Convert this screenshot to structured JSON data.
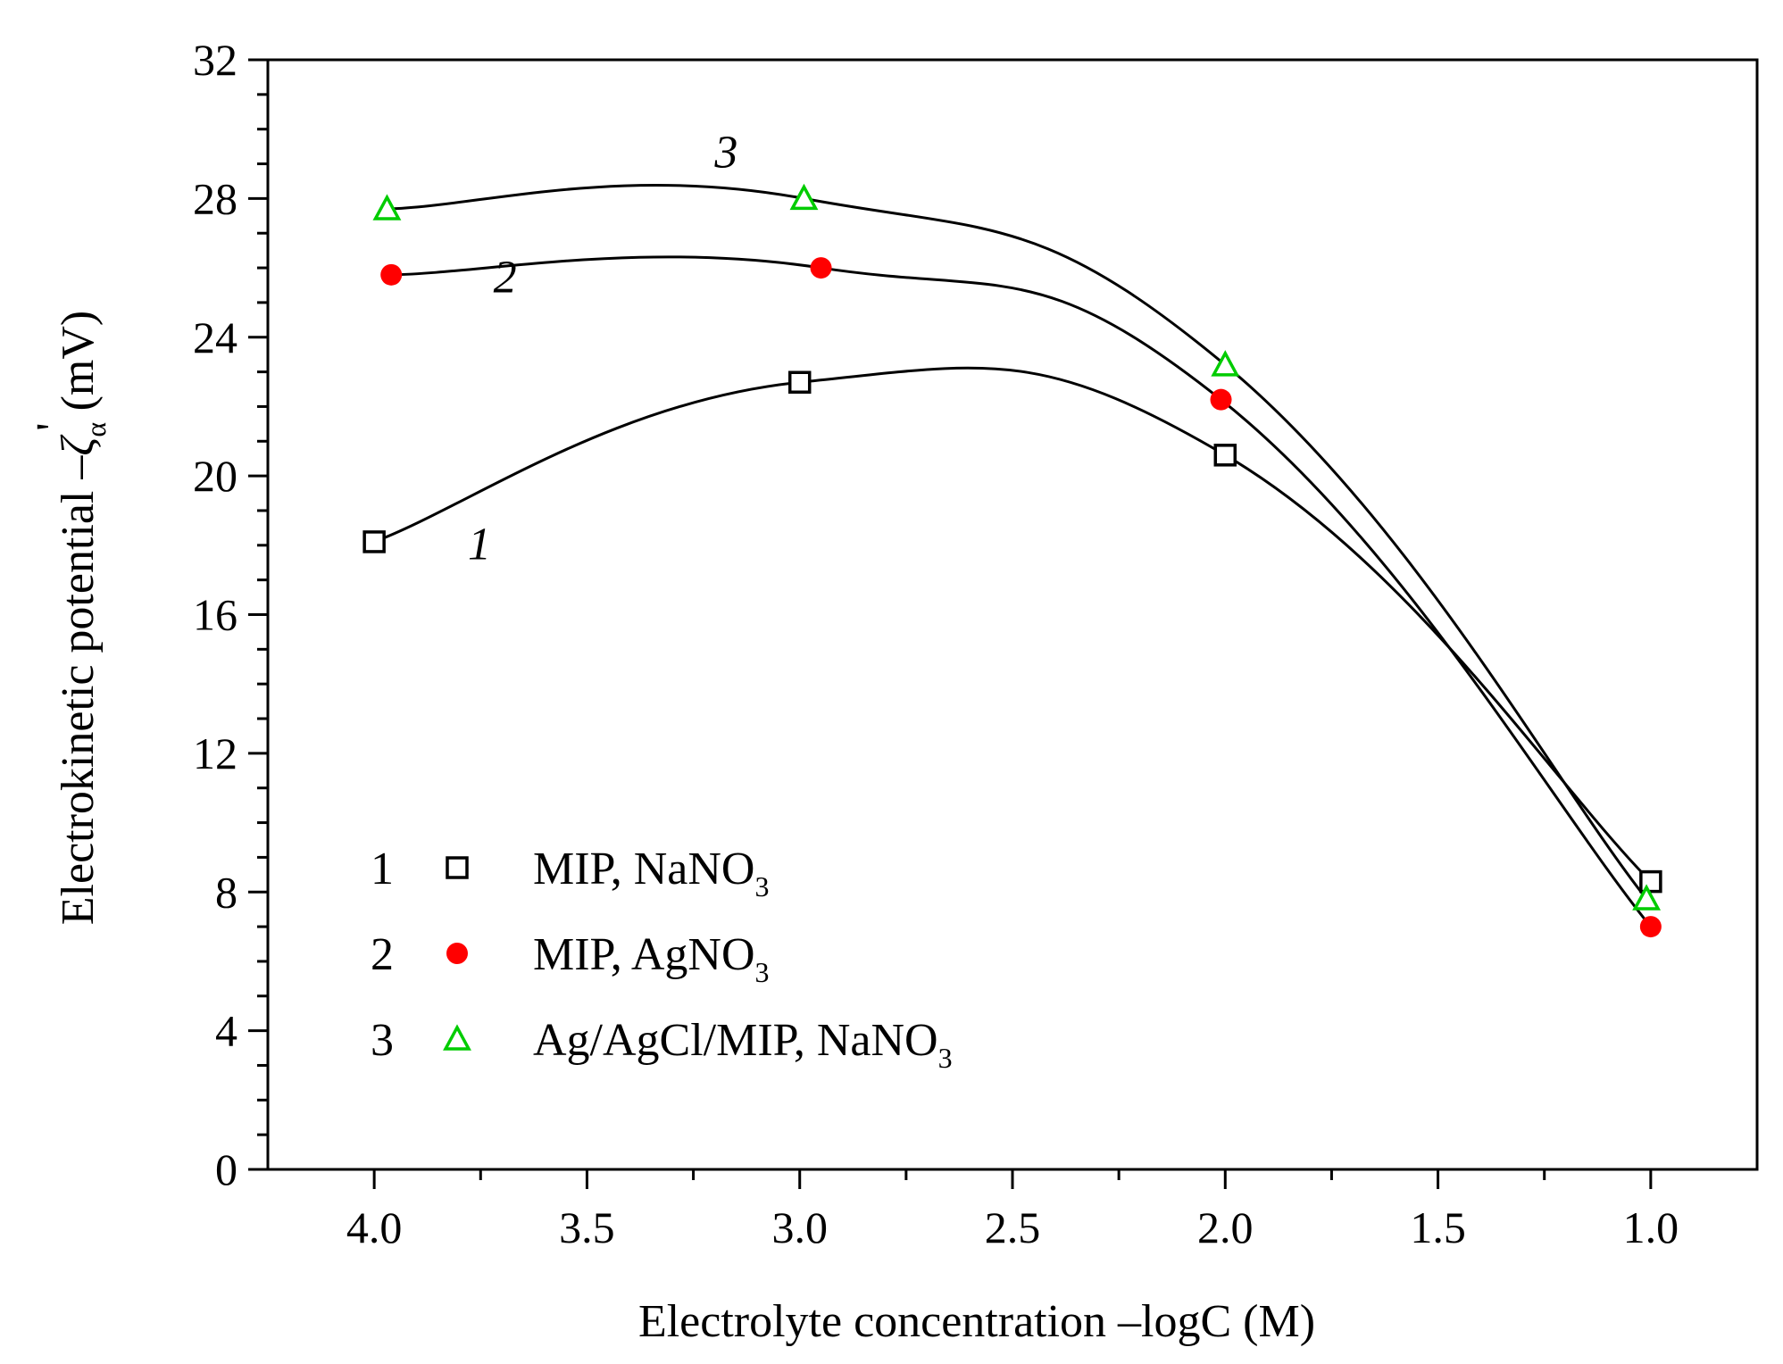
{
  "chart_data": {
    "type": "line",
    "title": "",
    "xlabel": "Electrolyte concentration –logC (M)",
    "ylabel_main": "Electrokinetic potential –",
    "ylabel_symbol": "ζ",
    "ylabel_prime": "'",
    "ylabel_sub": "α",
    "ylabel_unit": " (mV)",
    "xlim": [
      4.25,
      0.75
    ],
    "ylim": [
      0,
      32
    ],
    "x_ticks": [
      4.0,
      3.5,
      3.0,
      2.5,
      2.0,
      1.5,
      1.0
    ],
    "x_tick_labels": [
      "4.0",
      "3.5",
      "3.0",
      "2.5",
      "2.0",
      "1.5",
      "1.0"
    ],
    "y_ticks": [
      0,
      4,
      8,
      12,
      16,
      20,
      24,
      28,
      32
    ],
    "y_tick_labels": [
      "0",
      "4",
      "8",
      "12",
      "16",
      "20",
      "24",
      "28",
      "32"
    ],
    "grid": false,
    "legend_position": "lower-left",
    "series": [
      {
        "id": "1",
        "name": "MIP, NaNO",
        "name_sub": "3",
        "marker": "open-square",
        "color": "#000000",
        "x": [
          4.0,
          3.0,
          2.0,
          1.0
        ],
        "y": [
          18.1,
          22.7,
          20.6,
          8.3
        ],
        "curve_label": "1",
        "curve_label_at": [
          3.78,
          17.6
        ]
      },
      {
        "id": "2",
        "name": "MIP, AgNO",
        "name_sub": "3",
        "marker": "filled-circle",
        "color": "#ff0000",
        "x": [
          3.96,
          2.95,
          2.01,
          1.0
        ],
        "y": [
          25.8,
          26.0,
          22.2,
          7.0
        ],
        "curve_label": "2",
        "curve_label_at": [
          3.72,
          25.3
        ]
      },
      {
        "id": "3",
        "name": "Ag/AgCl/MIP, NaNO",
        "name_sub": "3",
        "marker": "open-triangle",
        "color": "#00cc00",
        "x": [
          3.97,
          2.99,
          2.0,
          1.01
        ],
        "y": [
          27.7,
          28.0,
          23.2,
          7.8
        ],
        "curve_label": "3",
        "curve_label_at": [
          3.2,
          28.9
        ]
      }
    ]
  }
}
